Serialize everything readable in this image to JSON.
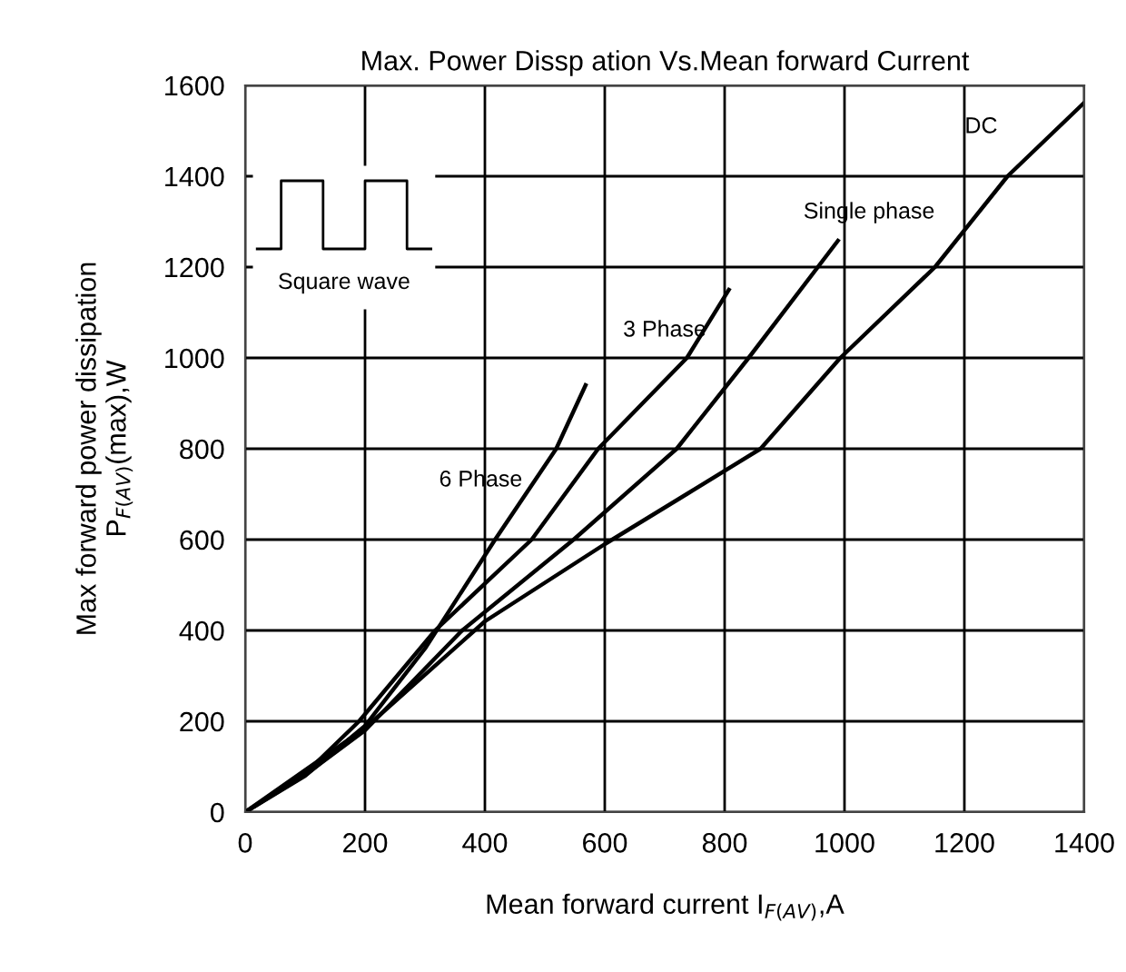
{
  "chart_data": {
    "type": "line",
    "title": "Max. Power Dissp ation Vs.Mean forward Current",
    "xlabel": "Mean forward current I$_{F(AV)}$,A",
    "ylabel": "Max forward power dissipation\nP$_{F(AV)}$(max),W",
    "xlim": [
      0,
      1400
    ],
    "xticks": [
      0,
      200,
      400,
      600,
      800,
      1000,
      1200,
      1400
    ],
    "ylim": [
      0,
      1600
    ],
    "yticks": [
      0,
      200,
      400,
      600,
      800,
      1000,
      1200,
      1400,
      1600
    ],
    "grid": true,
    "legend": false,
    "marker": "none",
    "line_style": "solid",
    "annotations": [
      "Square wave"
    ],
    "series": [
      {
        "name": "6 Phase",
        "color": "#000000",
        "x": [
          0,
          100,
          200,
          300,
          417,
          519,
          568
        ],
        "values": [
          0,
          80,
          190,
          360,
          600,
          800,
          940
        ]
      },
      {
        "name": "3 Phase",
        "color": "#000000",
        "x": [
          0,
          100,
          190,
          317,
          478,
          589,
          737,
          807
        ],
        "values": [
          0,
          85,
          200,
          400,
          600,
          800,
          1000,
          1150
        ]
      },
      {
        "name": "Single phase",
        "color": "#000000",
        "x": [
          0,
          100,
          200,
          362,
          548,
          720,
          840,
          989
        ],
        "values": [
          0,
          82,
          180,
          400,
          600,
          800,
          1000,
          1258
        ]
      },
      {
        "name": "DC",
        "color": "#000000",
        "x": [
          0,
          200,
          400,
          600,
          739,
          860,
          993,
          1151,
          1272,
          1400
        ],
        "values": [
          0,
          185,
          420,
          590,
          702,
          800,
          1000,
          1200,
          1400,
          1562
        ]
      }
    ]
  }
}
